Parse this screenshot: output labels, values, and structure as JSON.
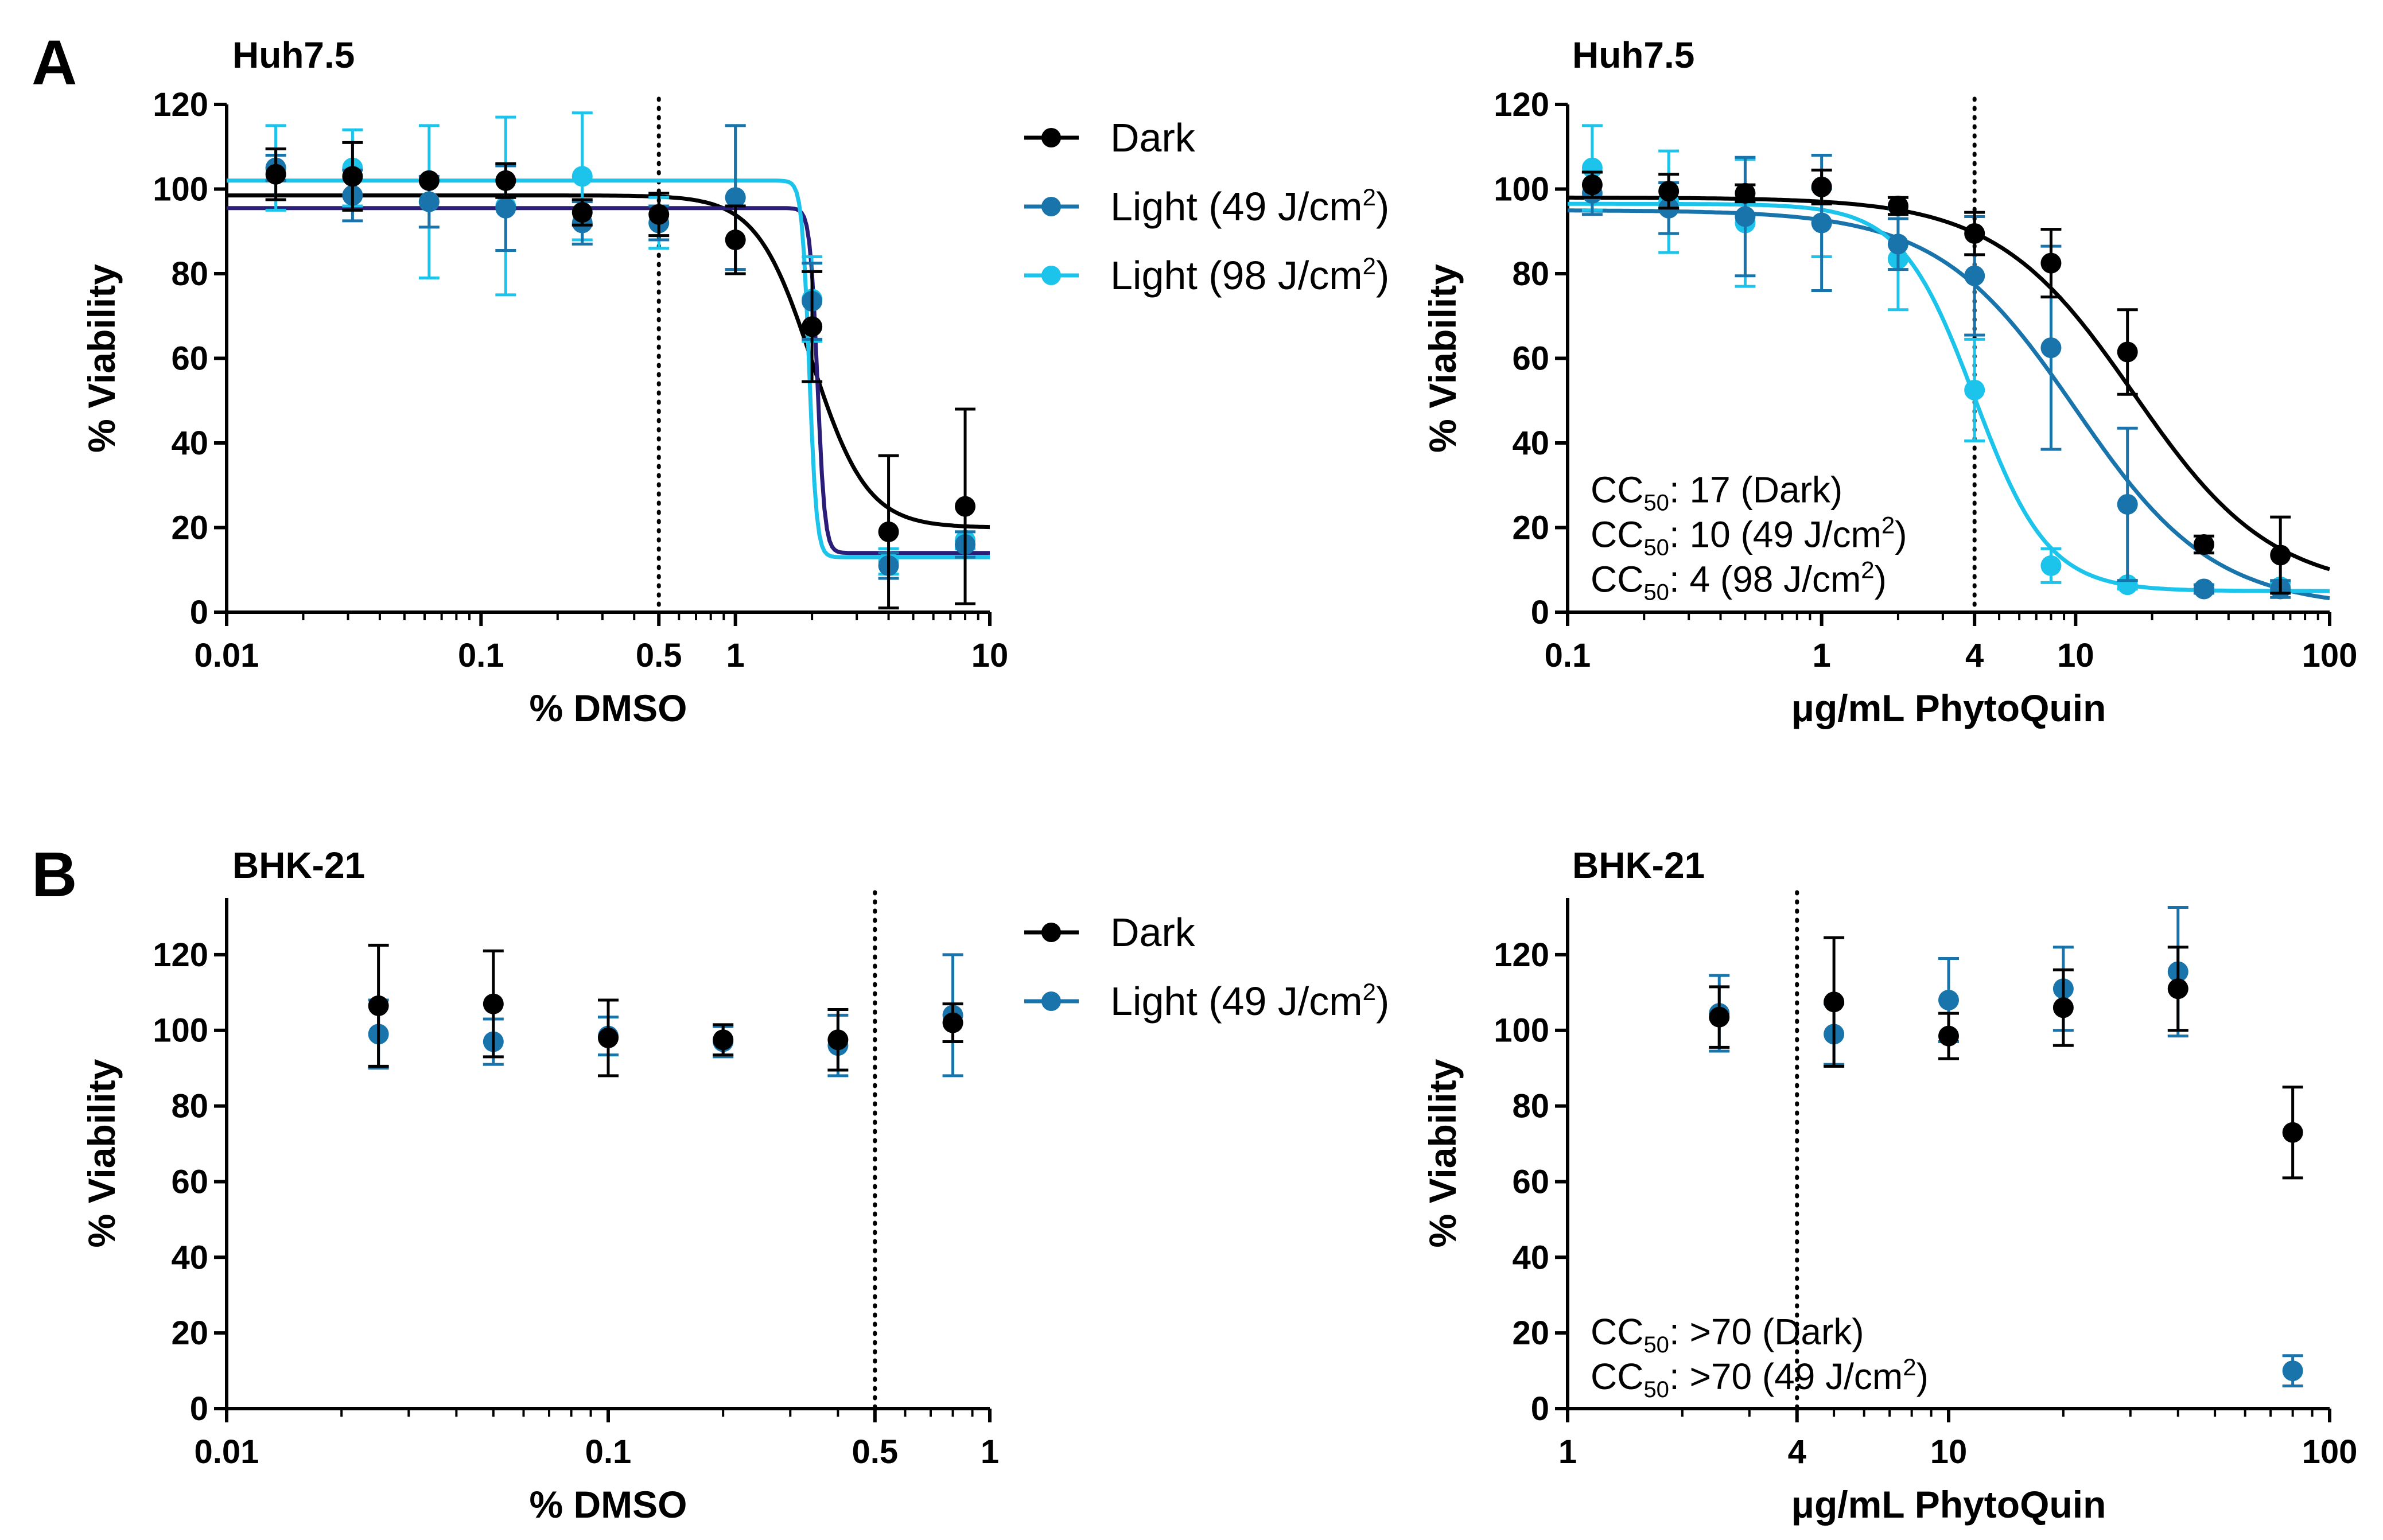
{
  "figure": {
    "panel_a_letter": "A",
    "panel_b_letter": "B"
  },
  "legends": {
    "top": [
      {
        "label": "Dark",
        "color": "#000000"
      },
      {
        "label": "Light (49 J/cm",
        "sup": "2",
        "close": ")",
        "color": "#1874ab"
      },
      {
        "label": "Light (98 J/cm",
        "sup": "2",
        "close": ")",
        "color": "#1cc4ec"
      }
    ],
    "bottom": [
      {
        "label": "Dark",
        "color": "#000000"
      },
      {
        "label": "Light (49 J/cm",
        "sup": "2",
        "close": ")",
        "color": "#1874ab"
      }
    ]
  },
  "colors": {
    "dark": "#000000",
    "light49": "#1874ab",
    "light98": "#1cc4ec",
    "light49_fit_dmso": "#2a1e78"
  },
  "chart_data": [
    {
      "id": "a1",
      "type": "scatter",
      "title": "Huh7.5",
      "xlabel": "% DMSO",
      "ylabel": "% Viability",
      "xscale": "log",
      "xlim": [
        0.01,
        10
      ],
      "ylim": [
        0,
        120
      ],
      "xticks": [
        0.01,
        0.1,
        0.5,
        1,
        10
      ],
      "xtick_labels": [
        "0.01",
        "0.1",
        "0.5",
        "1",
        "10"
      ],
      "yticks": [
        0,
        20,
        40,
        60,
        80,
        100,
        120
      ],
      "ytick_labels": [
        "0",
        "20",
        "40",
        "60",
        "80",
        "100",
        "120"
      ],
      "vline": 0.5,
      "series": [
        {
          "name": "Dark",
          "color": "#000000",
          "x": [
            0.0156,
            0.03125,
            0.0625,
            0.125,
            0.25,
            0.5,
            1,
            2,
            4,
            8
          ],
          "y": [
            103.5,
            103,
            102,
            102,
            94.5,
            94,
            88,
            67.5,
            19,
            25
          ],
          "err": [
            6,
            8,
            0,
            4,
            3,
            5,
            8,
            13,
            18,
            23
          ],
          "fit": {
            "top": 98.5,
            "bottom": 20,
            "ec50": 2.0,
            "hill": 4
          }
        },
        {
          "name": "Light (49 J/cm2)",
          "color": "#1874ab",
          "fit_color": "#2a1e78",
          "x": [
            0.0156,
            0.03125,
            0.0625,
            0.125,
            0.25,
            0.5,
            1,
            2,
            4,
            8
          ],
          "y": [
            105,
            98.5,
            97,
            95.5,
            92,
            92,
            98,
            73.5,
            11,
            16
          ],
          "err": [
            3,
            6,
            6,
            10,
            5,
            4,
            17,
            9,
            3,
            3
          ],
          "fit": {
            "top": 95.5,
            "bottom": 14,
            "ec50": 2.1,
            "hill": 30
          }
        },
        {
          "name": "Light (98 J/cm2)",
          "color": "#1cc4ec",
          "x": [
            0.0156,
            0.03125,
            0.0625,
            0.125,
            0.25,
            0.5,
            1,
            2,
            4,
            8
          ],
          "y": [
            105,
            105,
            97,
            96,
            103,
            92,
            98,
            74,
            12,
            17
          ],
          "err": [
            10,
            9,
            18,
            21,
            15,
            6,
            17,
            10,
            3,
            2
          ],
          "fit": {
            "top": 102,
            "bottom": 13,
            "ec50": 1.95,
            "hill": 30
          }
        }
      ]
    },
    {
      "id": "a2",
      "type": "scatter",
      "title": "Huh7.5",
      "xlabel": "μg/mL PhytoQuin",
      "ylabel": "% Viability",
      "xscale": "log",
      "xlim": [
        0.1,
        100
      ],
      "ylim": [
        0,
        120
      ],
      "xticks": [
        0.1,
        1,
        4,
        10,
        100
      ],
      "xtick_labels": [
        "0.1",
        "1",
        "4",
        "10",
        "100"
      ],
      "yticks": [
        0,
        20,
        40,
        60,
        80,
        100,
        120
      ],
      "ytick_labels": [
        "0",
        "20",
        "40",
        "60",
        "80",
        "100",
        "120"
      ],
      "vline": 4,
      "annotations": [
        {
          "prefix": "CC",
          "sub": "50",
          "text": ": 17 (Dark)"
        },
        {
          "prefix": "CC",
          "sub": "50",
          "text": ": 10 (49 J/cm",
          "sup": "2",
          "close": ")"
        },
        {
          "prefix": "CC",
          "sub": "50",
          "text": ": 4 (98 J/cm",
          "sup": "2",
          "close": ")"
        }
      ],
      "series": [
        {
          "name": "Dark",
          "color": "#000000",
          "x": [
            0.125,
            0.25,
            0.5,
            1,
            2,
            4,
            8,
            16,
            32,
            64
          ],
          "y": [
            101,
            99.5,
            99,
            100.5,
            96,
            89.5,
            82.5,
            61.5,
            16,
            13.5
          ],
          "err": [
            3,
            4,
            2,
            4,
            2,
            5,
            8,
            10,
            2,
            9
          ],
          "fit": {
            "top": 98,
            "bottom": 5,
            "ec50": 17,
            "hill": 1.6
          }
        },
        {
          "name": "Light (49 J/cm2)",
          "color": "#1874ab",
          "x": [
            0.125,
            0.25,
            0.5,
            1,
            2,
            4,
            8,
            16,
            32,
            64
          ],
          "y": [
            99,
            95.5,
            93.5,
            92,
            87,
            79.5,
            62.5,
            25.5,
            5.5,
            5.5
          ],
          "err": [
            5,
            6,
            14,
            16,
            6,
            14,
            24,
            18,
            1,
            2
          ],
          "fit": {
            "top": 95,
            "bottom": 1,
            "ec50": 10,
            "hill": 1.6
          }
        },
        {
          "name": "Light (98 J/cm2)",
          "color": "#1cc4ec",
          "x": [
            0.125,
            0.25,
            0.5,
            1,
            2,
            4,
            8,
            16,
            32,
            64
          ],
          "y": [
            105,
            97,
            92,
            92,
            83.5,
            52.5,
            11,
            6.5,
            5.5,
            6
          ],
          "err": [
            10,
            12,
            15,
            8,
            12,
            12,
            4,
            1,
            1,
            1
          ],
          "fit": {
            "top": 96.5,
            "bottom": 5,
            "ec50": 4,
            "hill": 3
          }
        }
      ]
    },
    {
      "id": "b1",
      "type": "scatter",
      "title": "BHK-21",
      "xlabel": "% DMSO",
      "ylabel": "% Viability",
      "xscale": "log",
      "xlim": [
        0.01,
        1
      ],
      "ylim": [
        0,
        135
      ],
      "xticks": [
        0.01,
        0.1,
        0.5,
        1
      ],
      "xtick_labels": [
        "0.01",
        "0.1",
        "0.5",
        "1"
      ],
      "yticks": [
        0,
        20,
        40,
        60,
        80,
        100,
        120
      ],
      "ytick_labels": [
        "0",
        "20",
        "40",
        "60",
        "80",
        "100",
        "120"
      ],
      "vline": 0.5,
      "series": [
        {
          "name": "Dark",
          "color": "#000000",
          "x": [
            0.025,
            0.05,
            0.1,
            0.2,
            0.4,
            0.8
          ],
          "y": [
            106.5,
            107,
            98,
            97.5,
            97.5,
            102
          ],
          "err": [
            16,
            14,
            10,
            4,
            8,
            5
          ]
        },
        {
          "name": "Light (49 J/cm2)",
          "color": "#1874ab",
          "x": [
            0.025,
            0.05,
            0.1,
            0.2,
            0.4,
            0.8
          ],
          "y": [
            99,
            97,
            98.5,
            97,
            96,
            104
          ],
          "err": [
            9,
            6,
            5,
            4,
            8,
            16
          ]
        }
      ]
    },
    {
      "id": "b2",
      "type": "scatter",
      "title": "BHK-21",
      "xlabel": "μg/mL PhytoQuin",
      "ylabel": "% Viability",
      "xscale": "log",
      "xlim": [
        1,
        100
      ],
      "ylim": [
        0,
        135
      ],
      "xticks": [
        1,
        4,
        10,
        100
      ],
      "xtick_labels": [
        "1",
        "4",
        "10",
        "100"
      ],
      "yticks": [
        0,
        20,
        40,
        60,
        80,
        100,
        120
      ],
      "ytick_labels": [
        "0",
        "20",
        "40",
        "60",
        "80",
        "100",
        "120"
      ],
      "vline": 4,
      "annotations": [
        {
          "prefix": "CC",
          "sub": "50",
          "text": ": >70 (Dark)"
        },
        {
          "prefix": "CC",
          "sub": "50",
          "text": ": >70 (49 J/cm",
          "sup": "2",
          "close": ")"
        }
      ],
      "series": [
        {
          "name": "Dark",
          "color": "#000000",
          "x": [
            2.5,
            5,
            10,
            20,
            40,
            80
          ],
          "y": [
            103.5,
            107.5,
            98.5,
            106,
            111,
            73
          ],
          "err": [
            8,
            17,
            6,
            10,
            11,
            12
          ]
        },
        {
          "name": "Light (49 J/cm2)",
          "color": "#1874ab",
          "x": [
            2.5,
            5,
            10,
            20,
            40,
            80
          ],
          "y": [
            104.5,
            99,
            108,
            111,
            115.5,
            10
          ],
          "err": [
            10,
            8,
            11,
            11,
            17,
            4
          ]
        }
      ]
    }
  ]
}
